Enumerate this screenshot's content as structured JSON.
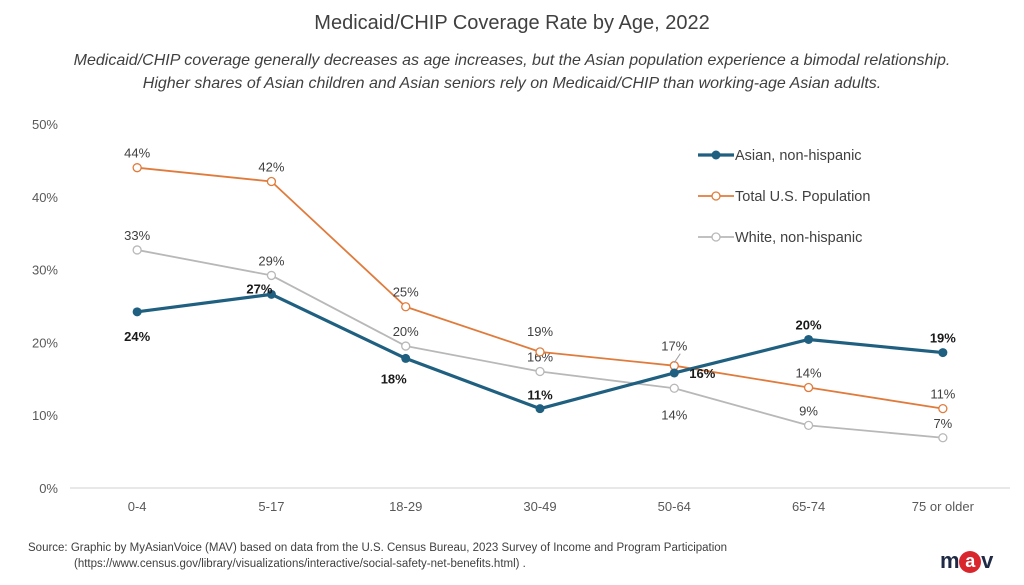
{
  "chart_data": {
    "type": "line",
    "title": "Medicaid/CHIP Coverage Rate by Age, 2022",
    "subtitle_line1": "Medicaid/CHIP coverage generally decreases as age increases, but the Asian population experience a bimodal relationship.",
    "subtitle_line2": "Higher shares of Asian children and Asian seniors rely on Medicaid/CHIP than working-age Asian adults.",
    "categories": [
      "0-4",
      "5-17",
      "18-29",
      "30-49",
      "50-64",
      "65-74",
      "75 or older"
    ],
    "ylim": [
      0,
      50
    ],
    "yticks": [
      "0%",
      "10%",
      "20%",
      "30%",
      "40%",
      "50%"
    ],
    "ytick_values": [
      0,
      10,
      20,
      30,
      40,
      50
    ],
    "legend_position": "top-right",
    "series": [
      {
        "name": "Asian, non-hispanic",
        "color": "#1f5f80",
        "values": [
          24.2,
          26.6,
          17.8,
          10.9,
          15.8,
          20.4,
          18.6
        ],
        "labels": [
          "24%",
          "27%",
          "18%",
          "11%",
          "16%",
          "20%",
          "19%"
        ],
        "bold": true
      },
      {
        "name": "Total U.S. Population",
        "color": "#e07b3c",
        "values": [
          44.0,
          42.1,
          24.9,
          18.7,
          16.8,
          13.8,
          10.9
        ],
        "labels": [
          "44%",
          "42%",
          "25%",
          "19%",
          "17%",
          "14%",
          "11%"
        ],
        "bold": false
      },
      {
        "name": "White, non-hispanic",
        "color": "#b8b8b8",
        "values": [
          32.7,
          29.2,
          19.5,
          16.0,
          13.7,
          8.6,
          6.9
        ],
        "labels": [
          "33%",
          "29%",
          "20%",
          "16%",
          "14%",
          "9%",
          "7%"
        ],
        "bold": false
      }
    ]
  },
  "footer": {
    "source_line1": "Source: Graphic by MyAsianVoice (MAV) based on data from the U.S. Census Bureau, 2023 Survey of Income and Program Participation",
    "source_line2": "(https://www.census.gov/library/visualizations/interactive/social-safety-net-benefits.html) .",
    "logo_m": "m",
    "logo_a": "a",
    "logo_v": "v"
  }
}
